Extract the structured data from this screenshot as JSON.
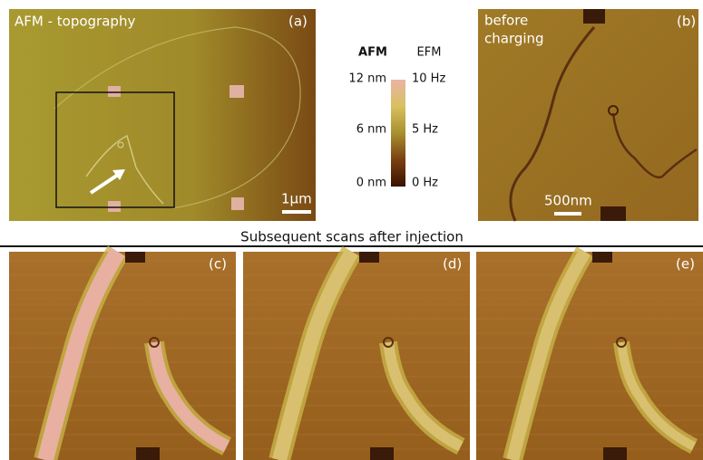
{
  "panels": [
    {
      "label": "(a)",
      "title": "AFM - topography",
      "scale_bar": "1µm"
    },
    {
      "label": "(b)",
      "title_lines": [
        "before",
        "charging"
      ],
      "scale_bar": "500nm"
    },
    {
      "label": "(c)"
    },
    {
      "label": "(d)"
    },
    {
      "label": "(e)"
    }
  ],
  "colorbar": {
    "headers": [
      "AFM",
      "EFM"
    ],
    "afm_labels": [
      "12 nm",
      "6 nm",
      "0 nm"
    ],
    "efm_labels": [
      "10 Hz",
      "5 Hz",
      "0 Hz"
    ]
  },
  "caption": "Subsequent scans after injection"
}
